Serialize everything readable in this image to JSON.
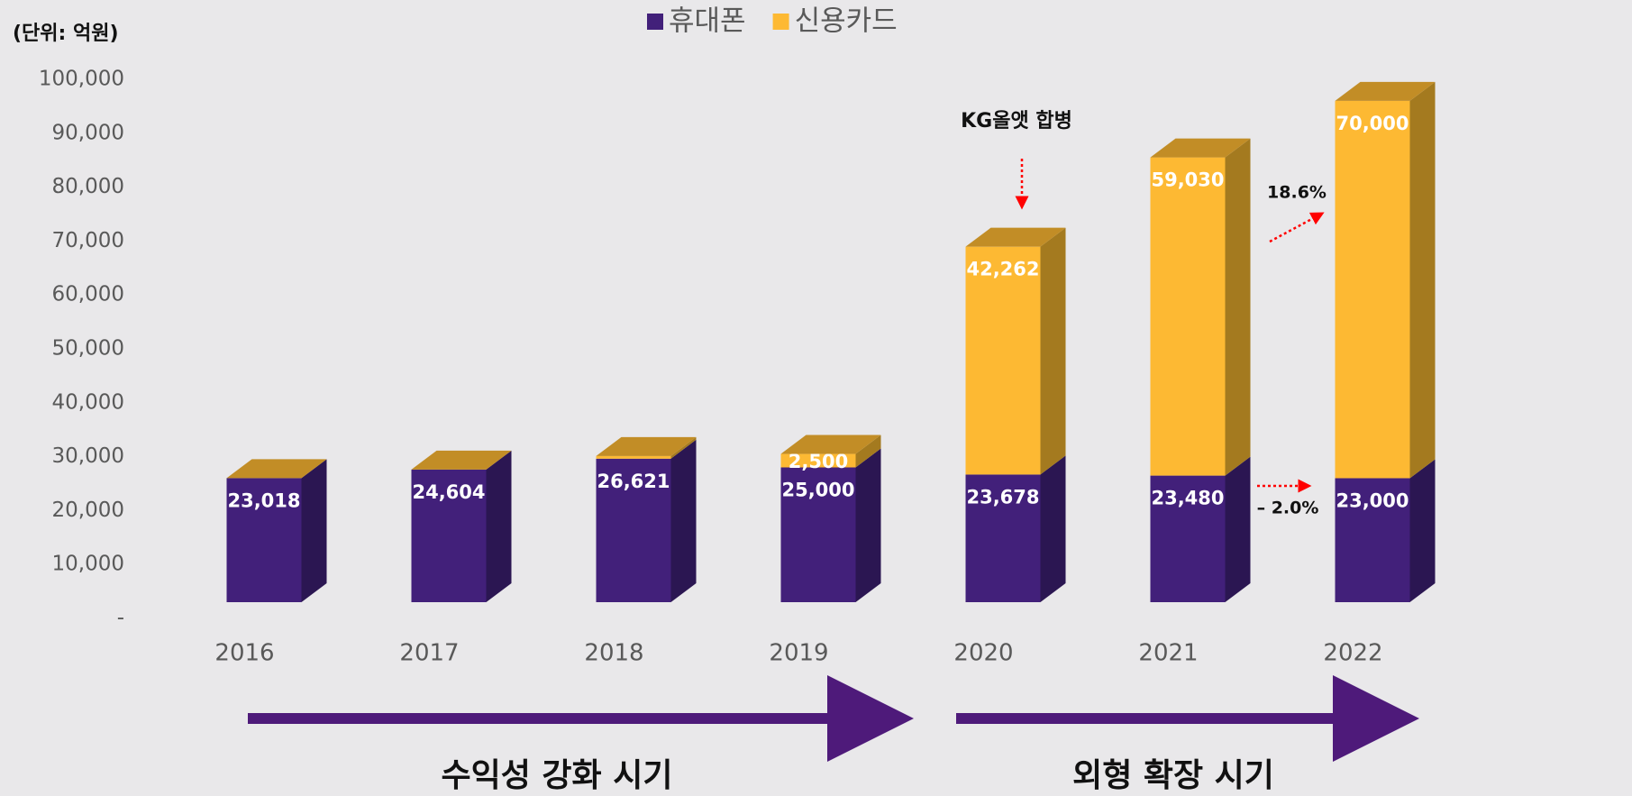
{
  "chart_data": {
    "type": "stacked_bar_3d",
    "unit_label": "(단위: 억원)",
    "categories": [
      "2016",
      "2017",
      "2018",
      "2019",
      "2020",
      "2021",
      "2022"
    ],
    "series": [
      {
        "name": "휴대폰",
        "color": "#42207a",
        "side_color": "#2b1652",
        "values": [
          23018,
          24604,
          26621,
          25000,
          23678,
          23480,
          23000
        ],
        "value_labels": [
          "23,018",
          "24,604",
          "26,621",
          "25,000",
          "23,678",
          "23,480",
          "23,000"
        ]
      },
      {
        "name": "신용카드",
        "color": "#fdb933",
        "side_color": "#a47a1f",
        "values": [
          null,
          null,
          500,
          2500,
          42262,
          59030,
          70000
        ],
        "value_labels": [
          null,
          null,
          null,
          "2,500",
          "42,262",
          "59,030",
          "70,000"
        ]
      }
    ],
    "top_color": "#c28d26",
    "ylim": [
      0,
      100000
    ],
    "yticks": [
      {
        "value": 0,
        "label": "-"
      },
      {
        "value": 10000,
        "label": "10,000"
      },
      {
        "value": 20000,
        "label": "20,000"
      },
      {
        "value": 30000,
        "label": "30,000"
      },
      {
        "value": 40000,
        "label": "40,000"
      },
      {
        "value": 50000,
        "label": "50,000"
      },
      {
        "value": 60000,
        "label": "60,000"
      },
      {
        "value": 70000,
        "label": "70,000"
      },
      {
        "value": 80000,
        "label": "80,000"
      },
      {
        "value": 90000,
        "label": "90,000"
      },
      {
        "value": 100000,
        "label": "100,000"
      }
    ],
    "legend": "top",
    "annotations": {
      "merger": "KG올앳 합병",
      "card_growth": "18.6%",
      "phone_change": "– 2.0%"
    },
    "periods": [
      "수익성 강화 시기",
      "외형 확장 시기"
    ]
  }
}
